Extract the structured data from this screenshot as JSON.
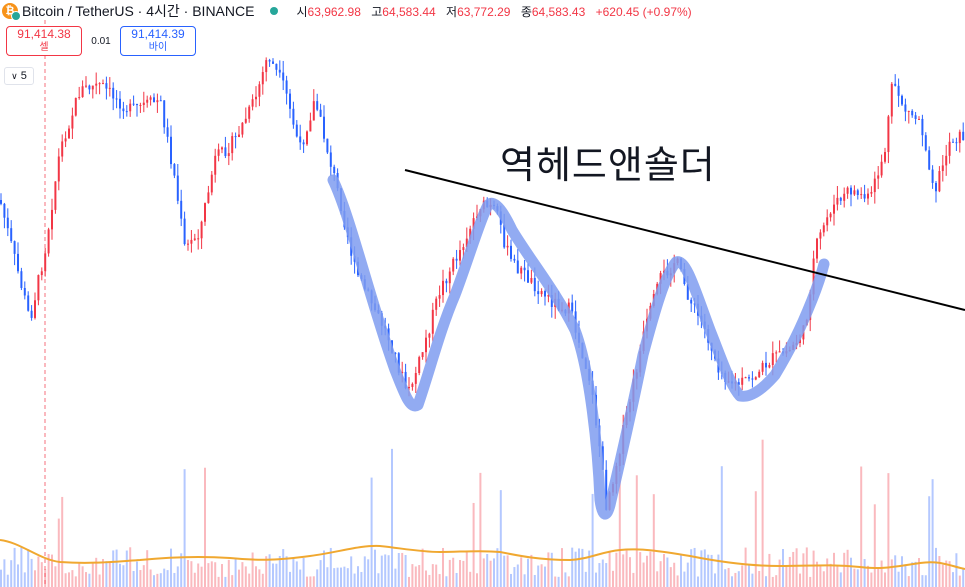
{
  "header": {
    "symbol": "Bitcoin / TetherUS · 4시간 · BINANCE",
    "coin_icon": "bitcoin-icon",
    "ohlc": [
      {
        "label": "시",
        "value": "63,962.98"
      },
      {
        "label": "고",
        "value": "64,583.44"
      },
      {
        "label": "저",
        "value": "63,772.29"
      },
      {
        "label": "종",
        "value": "64,583.43"
      }
    ],
    "change": "+620.45 (+0.97%)"
  },
  "trade": {
    "sell_price": "91,414.38",
    "sell_label": "셀",
    "spread": "0.01",
    "buy_price": "91,414.39",
    "buy_label": "바이"
  },
  "indicator_toggle": "5",
  "annotation": "역헤드앤숄더",
  "colors": {
    "up": "#f23645",
    "down": "#2962ff",
    "pattern": "#7f9cf0",
    "volume_ma": "#f0a830",
    "trendline": "#000000"
  },
  "chart_data": {
    "type": "candlestick",
    "title": "",
    "pattern": "inverse head and shoulders"
  }
}
